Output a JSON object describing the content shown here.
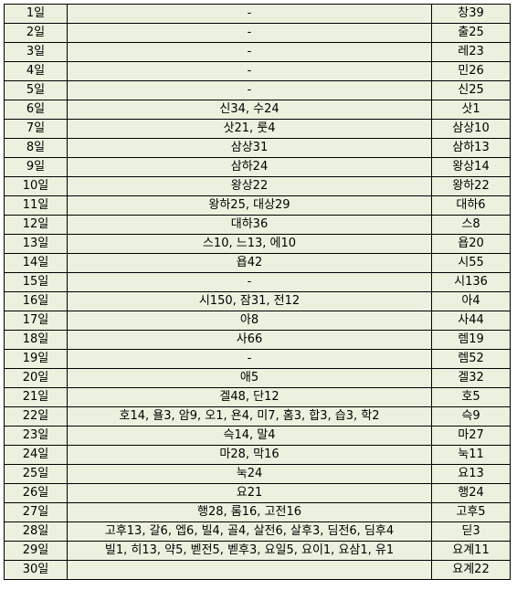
{
  "rows": [
    {
      "day": "1일",
      "middle": "-",
      "right": "창39"
    },
    {
      "day": "2일",
      "middle": "-",
      "right": "출25"
    },
    {
      "day": "3일",
      "middle": "-",
      "right": "레23"
    },
    {
      "day": "4일",
      "middle": "-",
      "right": "민26"
    },
    {
      "day": "5일",
      "middle": "-",
      "right": "신25"
    },
    {
      "day": "6일",
      "middle": "신34, 수24",
      "right": "삿1"
    },
    {
      "day": "7일",
      "middle": "삿21, 룻4",
      "right": "삼상10"
    },
    {
      "day": "8일",
      "middle": "삼상31",
      "right": "삼하13"
    },
    {
      "day": "9일",
      "middle": "삼하24",
      "right": "왕상14"
    },
    {
      "day": "10일",
      "middle": "왕상22",
      "right": "왕하22"
    },
    {
      "day": "11일",
      "middle": "왕하25, 대상29",
      "right": "대하6"
    },
    {
      "day": "12일",
      "middle": "대하36",
      "right": "스8"
    },
    {
      "day": "13일",
      "middle": "스10, 느13, 에10",
      "right": "욥20"
    },
    {
      "day": "14일",
      "middle": "욥42",
      "right": "시55"
    },
    {
      "day": "15일",
      "middle": "-",
      "right": "시136"
    },
    {
      "day": "16일",
      "middle": "시150, 잠31, 전12",
      "right": "아4"
    },
    {
      "day": "17일",
      "middle": "아8",
      "right": "사44"
    },
    {
      "day": "18일",
      "middle": "사66",
      "right": "렘19"
    },
    {
      "day": "19일",
      "middle": "-",
      "right": "렘52"
    },
    {
      "day": "20일",
      "middle": "애5",
      "right": "겔32"
    },
    {
      "day": "21일",
      "middle": "겔48, 단12",
      "right": "호5"
    },
    {
      "day": "22일",
      "middle": "호14, 욜3, 암9, 오1, 욘4, 미7, 홈3, 합3, 습3, 학2",
      "right": "슥9"
    },
    {
      "day": "23일",
      "middle": "슥14, 말4",
      "right": "마27"
    },
    {
      "day": "24일",
      "middle": "마28, 막16",
      "right": "눅11"
    },
    {
      "day": "25일",
      "middle": "눅24",
      "right": "요13"
    },
    {
      "day": "26일",
      "middle": "요21",
      "right": "행24"
    },
    {
      "day": "27일",
      "middle": "행28, 롬16, 고전16",
      "right": "고후5"
    },
    {
      "day": "28일",
      "middle": "고후13, 갈6, 엡6, 빌4, 골4, 살전6, 살후3, 딤전6, 딤후4",
      "right": "딛3"
    },
    {
      "day": "29일",
      "middle": "빌1, 히13, 약5, 벧전5, 벧후3, 요일5, 요이1, 요삼1, 유1",
      "right": "요계11"
    },
    {
      "day": "30일",
      "middle": "",
      "right": "요계22"
    }
  ]
}
